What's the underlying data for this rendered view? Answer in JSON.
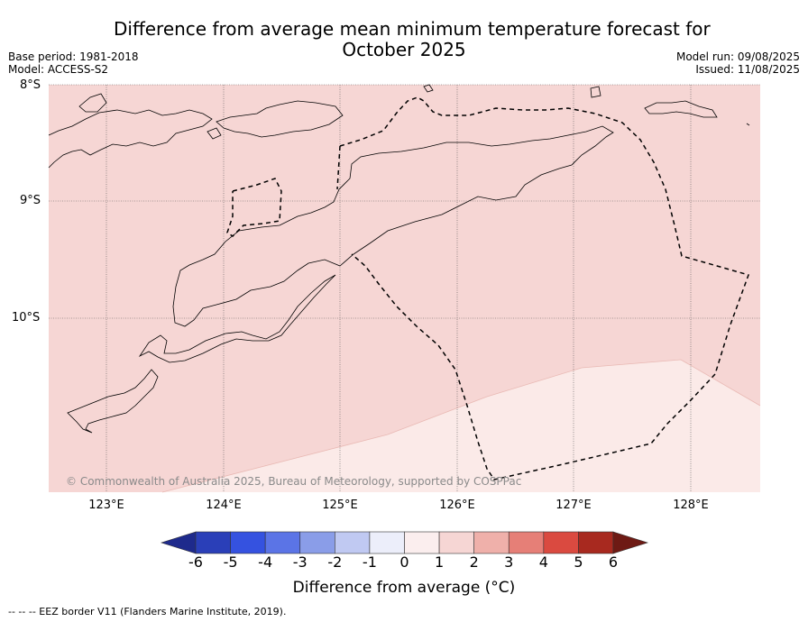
{
  "title_line1": "Difference from average mean minimum temperature forecast for",
  "title_line2": "October 2025",
  "base_period": "Base period: 1981-2018",
  "model": "Model: ACCESS-S2",
  "model_run": "Model run: 09/08/2025",
  "issued": "Issued: 11/08/2025",
  "lat_labels": [
    "8°S",
    "9°S",
    "10°S"
  ],
  "lon_labels": [
    "123°E",
    "124°E",
    "125°E",
    "126°E",
    "127°E",
    "128°E"
  ],
  "copyright": "© Commonwealth of Australia 2025, Bureau of Meteorology, supported by COSPPac",
  "colorbar": {
    "ticks": [
      "-6",
      "-5",
      "-4",
      "-3",
      "-2",
      "-1",
      "0",
      "1",
      "2",
      "3",
      "4",
      "5",
      "6"
    ],
    "colors": [
      "#1e2a8c",
      "#2a3fb8",
      "#3552e0",
      "#5b74e6",
      "#8a9de8",
      "#c0c9f2",
      "#eceefa",
      "#fbeeee",
      "#f6d6d4",
      "#efb0aa",
      "#e67f77",
      "#da4a40",
      "#a8291f",
      "#6e1a14"
    ],
    "label": "Difference from average (°C)"
  },
  "footnote": "-- -- -- EEZ border V11 (Flanders Marine Institute, 2019).",
  "map_colors": {
    "anomaly_1_2": "#f6d6d4",
    "anomaly_0_1": "#fbeae8"
  }
}
